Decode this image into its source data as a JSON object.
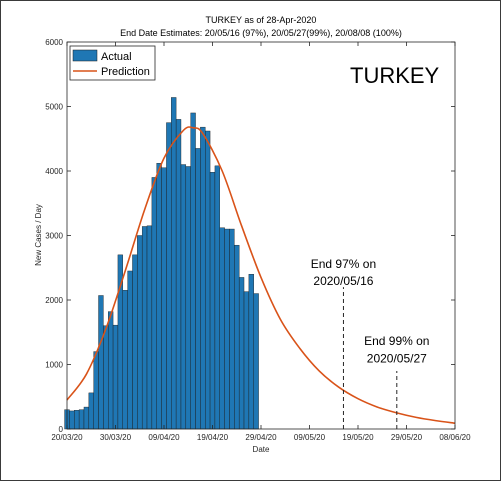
{
  "chart_data": {
    "type": "bar",
    "title": "TURKEY as of 28-Apr-2020",
    "subtitle": "End Date Estimates: 20/05/16 (97%), 20/05/27(99%), 20/08/08 (100%)",
    "xlabel": "Date",
    "ylabel": "New Cases / Day",
    "country_label": "TURKEY",
    "ylim": [
      0,
      6000
    ],
    "yticks": [
      0,
      1000,
      2000,
      3000,
      4000,
      5000,
      6000
    ],
    "xlim": [
      "2020-03-20",
      "2020-06-08"
    ],
    "xticks": [
      {
        "date": "2020-03-20",
        "label": "20/03/20"
      },
      {
        "date": "2020-03-30",
        "label": "30/03/20"
      },
      {
        "date": "2020-04-09",
        "label": "09/04/20"
      },
      {
        "date": "2020-04-19",
        "label": "19/04/20"
      },
      {
        "date": "2020-04-29",
        "label": "29/04/20"
      },
      {
        "date": "2020-05-09",
        "label": "09/05/20"
      },
      {
        "date": "2020-05-19",
        "label": "19/05/20"
      },
      {
        "date": "2020-05-29",
        "label": "29/05/20"
      },
      {
        "date": "2020-06-08",
        "label": "08/06/20"
      }
    ],
    "grid": false,
    "legend_position": "top-left",
    "series": [
      {
        "name": "Actual",
        "type": "bar",
        "color": "#1f77b4",
        "x": [
          "2020-03-20",
          "2020-03-21",
          "2020-03-22",
          "2020-03-23",
          "2020-03-24",
          "2020-03-25",
          "2020-03-26",
          "2020-03-27",
          "2020-03-28",
          "2020-03-29",
          "2020-03-30",
          "2020-03-31",
          "2020-04-01",
          "2020-04-02",
          "2020-04-03",
          "2020-04-04",
          "2020-04-05",
          "2020-04-06",
          "2020-04-07",
          "2020-04-08",
          "2020-04-09",
          "2020-04-10",
          "2020-04-11",
          "2020-04-12",
          "2020-04-13",
          "2020-04-14",
          "2020-04-15",
          "2020-04-16",
          "2020-04-17",
          "2020-04-18",
          "2020-04-19",
          "2020-04-20",
          "2020-04-21",
          "2020-04-22",
          "2020-04-23",
          "2020-04-24",
          "2020-04-25",
          "2020-04-26",
          "2020-04-27",
          "2020-04-28"
        ],
        "values": [
          300,
          280,
          290,
          300,
          340,
          560,
          1200,
          2070,
          1600,
          1820,
          1610,
          2700,
          2150,
          2450,
          2700,
          3000,
          3140,
          3150,
          3900,
          4120,
          4050,
          4750,
          5140,
          4800,
          4100,
          4070,
          4900,
          4350,
          4680,
          4620,
          3980,
          4080,
          3120,
          3100,
          3100,
          2850,
          2350,
          2130,
          2400,
          2100
        ]
      },
      {
        "name": "Prediction",
        "type": "line",
        "color": "#d95319",
        "x": [
          "2020-03-20",
          "2020-03-24",
          "2020-03-28",
          "2020-04-01",
          "2020-04-05",
          "2020-04-09",
          "2020-04-13",
          "2020-04-15",
          "2020-04-17",
          "2020-04-21",
          "2020-04-25",
          "2020-04-29",
          "2020-05-03",
          "2020-05-07",
          "2020-05-11",
          "2020-05-15",
          "2020-05-19",
          "2020-05-23",
          "2020-05-27",
          "2020-05-31",
          "2020-06-04",
          "2020-06-08"
        ],
        "values": [
          450,
          850,
          1550,
          2450,
          3400,
          4200,
          4630,
          4670,
          4580,
          4000,
          3150,
          2350,
          1700,
          1250,
          900,
          650,
          470,
          340,
          250,
          180,
          130,
          90
        ]
      }
    ],
    "annotations": [
      {
        "date": "2020-05-16",
        "line_top": 2200,
        "text_lines": [
          "End 97% on",
          "2020/05/16"
        ],
        "text_y": [
          2500,
          2230
        ]
      },
      {
        "date": "2020-05-27",
        "line_top": 900,
        "text_lines": [
          "End 99% on",
          "2020/05/27"
        ],
        "text_y": [
          1300,
          1030
        ]
      }
    ]
  }
}
